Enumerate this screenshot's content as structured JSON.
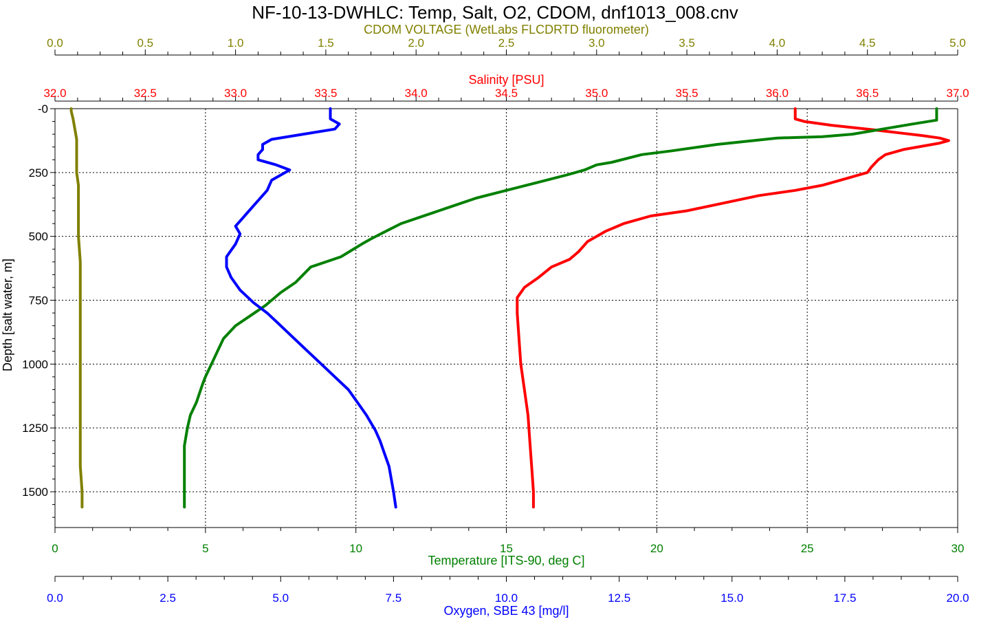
{
  "chart_data": {
    "type": "line",
    "title": "NF-10-13-DWHLC: Temp, Salt, O2, CDOM, dnf1013_008.cnv",
    "y_axis": {
      "label": "Depth [salt water, m]",
      "range": [
        0,
        1640
      ],
      "reversed": true,
      "ticks": [
        0,
        250,
        500,
        750,
        1000,
        1250,
        1500
      ],
      "tick_labels": [
        "-0",
        "250",
        "500",
        "750",
        "1000",
        "1250",
        "1500"
      ]
    },
    "x_axes": [
      {
        "id": "cdom",
        "label": "CDOM VOLTAGE (WetLabs FLCDRTD fluorometer)",
        "color": "#808000",
        "position": "top",
        "range": [
          0,
          5
        ],
        "ticks": [
          0,
          0.5,
          1,
          1.5,
          2,
          2.5,
          3,
          3.5,
          4,
          4.5,
          5
        ],
        "tick_labels": [
          "0.0",
          "0.5",
          "1.0",
          "1.5",
          "2.0",
          "2.5",
          "3.0",
          "3.5",
          "4.0",
          "4.5",
          "5.0"
        ]
      },
      {
        "id": "salinity",
        "label": "Salinity [PSU]",
        "color": "#ff0000",
        "position": "top",
        "range": [
          32,
          37
        ],
        "ticks": [
          32,
          32.5,
          33,
          33.5,
          34,
          34.5,
          35,
          35.5,
          36,
          36.5,
          37
        ],
        "tick_labels": [
          "32.0",
          "32.5",
          "33.0",
          "33.5",
          "34.0",
          "34.5",
          "35.0",
          "35.5",
          "36.0",
          "36.5",
          "37.0"
        ]
      },
      {
        "id": "temperature",
        "label": "Temperature [ITS-90, deg C]",
        "color": "#008000",
        "position": "bottom",
        "range": [
          0,
          30
        ],
        "ticks": [
          0,
          5,
          10,
          15,
          20,
          25,
          30
        ],
        "tick_labels": [
          "0",
          "5",
          "10",
          "15",
          "20",
          "25",
          "30"
        ]
      },
      {
        "id": "oxygen",
        "label": "Oxygen, SBE 43 [mg/l]",
        "color": "#0000ff",
        "position": "bottom",
        "range": [
          0,
          20
        ],
        "ticks": [
          0,
          2.5,
          5,
          7.5,
          10,
          12.5,
          15,
          17.5,
          20
        ],
        "tick_labels": [
          "0.0",
          "2.5",
          "5.0",
          "7.5",
          "10.0",
          "12.5",
          "15.0",
          "17.5",
          "20.0"
        ]
      }
    ],
    "grid": true,
    "series": [
      {
        "axis": "cdom",
        "color": "#808000",
        "points": [
          [
            0.09,
            0
          ],
          [
            0.09,
            10
          ],
          [
            0.1,
            40
          ],
          [
            0.11,
            80
          ],
          [
            0.12,
            120
          ],
          [
            0.12,
            160
          ],
          [
            0.12,
            200
          ],
          [
            0.12,
            250
          ],
          [
            0.13,
            300
          ],
          [
            0.13,
            400
          ],
          [
            0.13,
            500
          ],
          [
            0.14,
            600
          ],
          [
            0.14,
            700
          ],
          [
            0.14,
            800
          ],
          [
            0.14,
            900
          ],
          [
            0.14,
            1000
          ],
          [
            0.14,
            1100
          ],
          [
            0.14,
            1200
          ],
          [
            0.14,
            1300
          ],
          [
            0.14,
            1400
          ],
          [
            0.15,
            1500
          ],
          [
            0.15,
            1560
          ]
        ]
      },
      {
        "axis": "salinity",
        "color": "#ff0000",
        "points": [
          [
            36.1,
            0
          ],
          [
            36.1,
            40
          ],
          [
            36.15,
            50
          ],
          [
            36.3,
            65
          ],
          [
            36.5,
            80
          ],
          [
            36.68,
            95
          ],
          [
            36.8,
            105
          ],
          [
            36.9,
            115
          ],
          [
            36.95,
            125
          ],
          [
            36.9,
            135
          ],
          [
            36.7,
            160
          ],
          [
            36.6,
            180
          ],
          [
            36.56,
            200
          ],
          [
            36.52,
            230
          ],
          [
            36.5,
            250
          ],
          [
            36.4,
            270
          ],
          [
            36.25,
            300
          ],
          [
            36.1,
            320
          ],
          [
            35.9,
            340
          ],
          [
            35.7,
            370
          ],
          [
            35.5,
            400
          ],
          [
            35.3,
            420
          ],
          [
            35.15,
            450
          ],
          [
            35.05,
            480
          ],
          [
            34.95,
            520
          ],
          [
            34.9,
            560
          ],
          [
            34.85,
            590
          ],
          [
            34.75,
            620
          ],
          [
            34.68,
            660
          ],
          [
            34.6,
            700
          ],
          [
            34.56,
            740
          ],
          [
            34.56,
            800
          ],
          [
            34.57,
            900
          ],
          [
            34.58,
            1000
          ],
          [
            34.6,
            1100
          ],
          [
            34.62,
            1200
          ],
          [
            34.63,
            1300
          ],
          [
            34.64,
            1400
          ],
          [
            34.65,
            1500
          ],
          [
            34.65,
            1560
          ]
        ]
      },
      {
        "axis": "temperature",
        "color": "#008000",
        "points": [
          [
            29.3,
            0
          ],
          [
            29.3,
            45
          ],
          [
            28.5,
            60
          ],
          [
            27.5,
            80
          ],
          [
            26.5,
            100
          ],
          [
            25.5,
            110
          ],
          [
            24,
            115
          ],
          [
            22,
            140
          ],
          [
            20.5,
            165
          ],
          [
            19.5,
            180
          ],
          [
            18.5,
            210
          ],
          [
            18,
            220
          ],
          [
            17.6,
            240
          ],
          [
            17,
            260
          ],
          [
            16,
            290
          ],
          [
            15,
            320
          ],
          [
            14,
            350
          ],
          [
            13,
            390
          ],
          [
            12,
            430
          ],
          [
            11.5,
            450
          ],
          [
            11,
            480
          ],
          [
            10.5,
            510
          ],
          [
            10.2,
            530
          ],
          [
            9.5,
            580
          ],
          [
            8.5,
            620
          ],
          [
            8,
            680
          ],
          [
            7.5,
            720
          ],
          [
            7,
            770
          ],
          [
            6.5,
            810
          ],
          [
            6,
            850
          ],
          [
            5.6,
            900
          ],
          [
            5.4,
            950
          ],
          [
            5.2,
            1000
          ],
          [
            5,
            1050
          ],
          [
            4.9,
            1080
          ],
          [
            4.7,
            1150
          ],
          [
            4.5,
            1200
          ],
          [
            4.4,
            1250
          ],
          [
            4.3,
            1320
          ],
          [
            4.3,
            1400
          ],
          [
            4.3,
            1500
          ],
          [
            4.3,
            1560
          ]
        ]
      },
      {
        "axis": "oxygen",
        "color": "#0000ff",
        "points": [
          [
            6.1,
            0
          ],
          [
            6.1,
            40
          ],
          [
            6.3,
            60
          ],
          [
            6.2,
            80
          ],
          [
            5.5,
            100
          ],
          [
            4.8,
            120
          ],
          [
            4.6,
            140
          ],
          [
            4.6,
            160
          ],
          [
            4.5,
            180
          ],
          [
            4.5,
            200
          ],
          [
            4.9,
            220
          ],
          [
            5.2,
            240
          ],
          [
            5.0,
            260
          ],
          [
            4.8,
            280
          ],
          [
            4.7,
            320
          ],
          [
            4.5,
            360
          ],
          [
            4.3,
            400
          ],
          [
            4.1,
            440
          ],
          [
            4.0,
            460
          ],
          [
            4.1,
            490
          ],
          [
            4.0,
            530
          ],
          [
            3.8,
            580
          ],
          [
            3.8,
            620
          ],
          [
            3.9,
            660
          ],
          [
            4.1,
            710
          ],
          [
            4.4,
            760
          ],
          [
            4.7,
            800
          ],
          [
            5.0,
            850
          ],
          [
            5.3,
            900
          ],
          [
            5.6,
            950
          ],
          [
            5.9,
            1000
          ],
          [
            6.2,
            1050
          ],
          [
            6.5,
            1100
          ],
          [
            6.7,
            1150
          ],
          [
            6.9,
            1200
          ],
          [
            7.1,
            1260
          ],
          [
            7.2,
            1300
          ],
          [
            7.3,
            1350
          ],
          [
            7.4,
            1400
          ],
          [
            7.45,
            1450
          ],
          [
            7.5,
            1500
          ],
          [
            7.55,
            1560
          ]
        ]
      }
    ]
  }
}
